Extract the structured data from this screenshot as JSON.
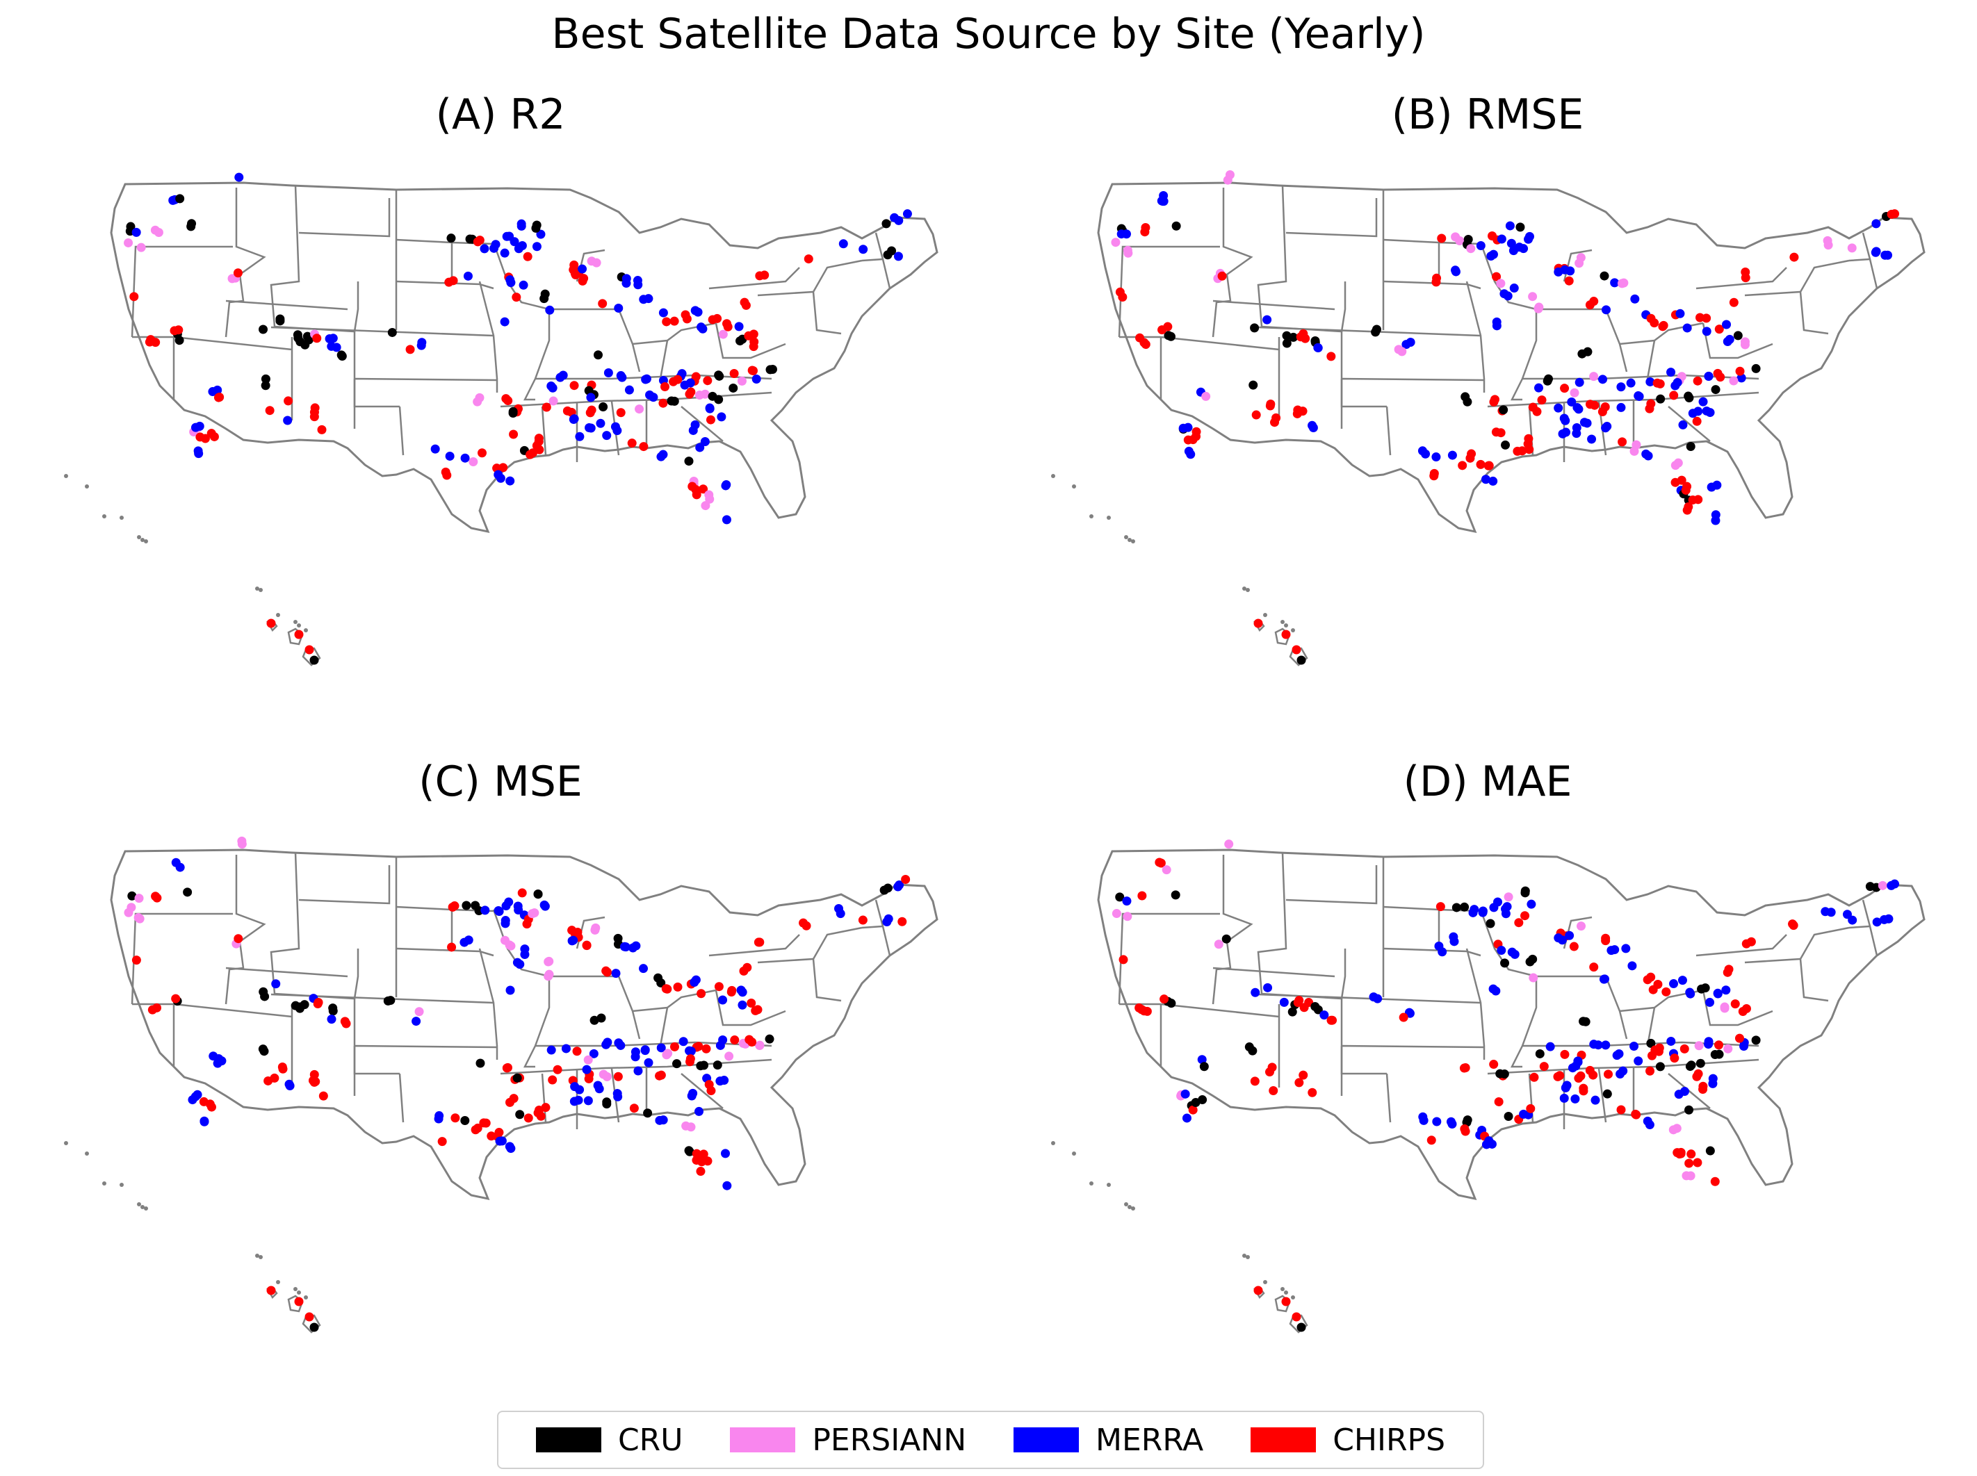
{
  "title": "Best Satellite Data Source by Site (Yearly)",
  "colors": {
    "CRU": "#000000",
    "PERSIANN": "#f986ee",
    "MERRA": "#0000ff",
    "CHIRPS": "#ff0000",
    "border": "#808080"
  },
  "legend": [
    {
      "label": "CRU",
      "color": "#000000"
    },
    {
      "label": "PERSIANN",
      "color": "#f986ee"
    },
    {
      "label": "MERRA",
      "color": "#0000ff"
    },
    {
      "label": "CHIRPS",
      "color": "#ff0000"
    }
  ],
  "panels": [
    {
      "title": "(A) R2"
    },
    {
      "title": "(B) RMSE"
    },
    {
      "title": "(C) MSE"
    },
    {
      "title": "(D) MAE"
    }
  ]
}
